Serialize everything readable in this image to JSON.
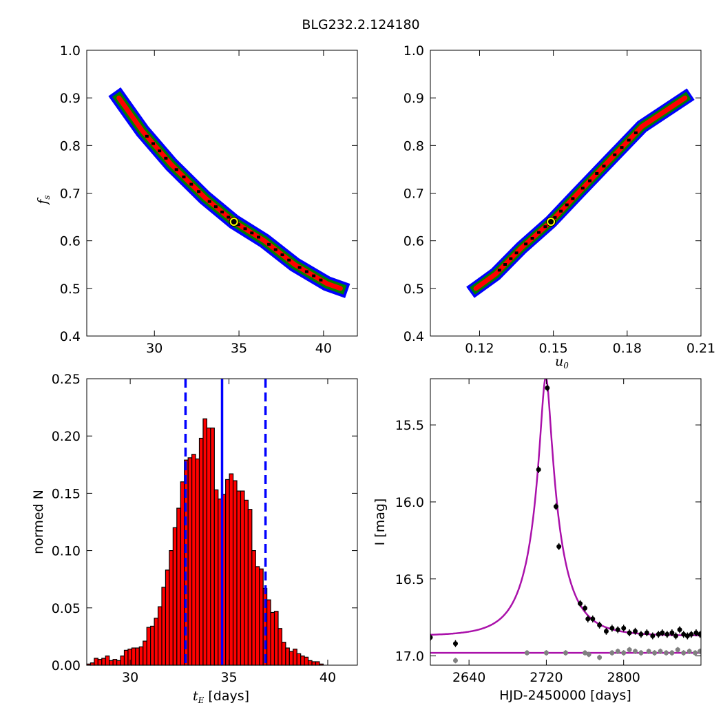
{
  "figure": {
    "suptitle": "BLG232.2.124180"
  },
  "colors": {
    "outer": "#0000ff",
    "mid": "#008000",
    "inner": "#ff0000",
    "core": "#000000",
    "marker_fill": "#ffff00",
    "bar": "#ff0000",
    "vline": "#0000ff",
    "model": "#aa11aa",
    "data_primary": "#000000",
    "data_secondary": "#808080"
  },
  "chart_data": [
    {
      "id": "fs_vs_tE",
      "type": "heatmap",
      "xlim": [
        26,
        42
      ],
      "ylim": [
        0.4,
        1.0
      ],
      "xticks": [
        30,
        35,
        40
      ],
      "yticks": [
        0.4,
        0.5,
        0.6,
        0.7,
        0.8,
        0.9,
        1.0
      ],
      "ytick_labels": [
        "0.4",
        "0.5",
        "0.6",
        "0.7",
        "0.8",
        "0.9",
        "1.0"
      ],
      "xlabel": "",
      "ylabel": "f_s",
      "band_centerline": [
        [
          27.9,
          0.9
        ],
        [
          29.3,
          0.83
        ],
        [
          31.0,
          0.76
        ],
        [
          33.0,
          0.69
        ],
        [
          34.7,
          0.64
        ],
        [
          36.5,
          0.6
        ],
        [
          38.3,
          0.55
        ],
        [
          40.2,
          0.51
        ],
        [
          41.0,
          0.5
        ]
      ],
      "best_fit": {
        "x": 34.7,
        "y": 0.64
      }
    },
    {
      "id": "fs_vs_u0",
      "type": "heatmap",
      "xlim": [
        0.1,
        0.21
      ],
      "ylim": [
        0.4,
        1.0
      ],
      "xticks": [
        0.12,
        0.15,
        0.18,
        0.21
      ],
      "xtick_labels": [
        "0.12",
        "0.15",
        "0.18",
        "0.21"
      ],
      "yticks": [
        0.4,
        0.5,
        0.6,
        0.7,
        0.8,
        0.9,
        1.0
      ],
      "ytick_labels": [
        "0.4",
        "0.5",
        "0.6",
        "0.7",
        "0.8",
        "0.9",
        "1.0"
      ],
      "xlabel": "u_0",
      "ylabel": "",
      "band_centerline": [
        [
          0.1185,
          0.5
        ],
        [
          0.1265,
          0.53
        ],
        [
          0.137,
          0.585
        ],
        [
          0.149,
          0.64
        ],
        [
          0.16,
          0.7
        ],
        [
          0.173,
          0.77
        ],
        [
          0.186,
          0.84
        ],
        [
          0.2035,
          0.9
        ]
      ],
      "best_fit": {
        "x": 0.149,
        "y": 0.64
      }
    },
    {
      "id": "tE_histogram",
      "type": "bar",
      "xlim": [
        27.8,
        41.5
      ],
      "ylim": [
        0.0,
        0.25
      ],
      "xticks": [
        30,
        35,
        40
      ],
      "yticks": [
        0.0,
        0.05,
        0.1,
        0.15,
        0.2,
        0.25
      ],
      "ytick_labels": [
        "0.00",
        "0.05",
        "0.10",
        "0.15",
        "0.20",
        "0.25"
      ],
      "xlabel": "t_E [days]",
      "ylabel": "normed N",
      "bin_start": 27.8,
      "bin_width": 0.19,
      "values": [
        0.001,
        0.002,
        0.006,
        0.005,
        0.006,
        0.008,
        0.004,
        0.005,
        0.004,
        0.008,
        0.013,
        0.014,
        0.015,
        0.015,
        0.016,
        0.021,
        0.033,
        0.034,
        0.041,
        0.051,
        0.068,
        0.083,
        0.1,
        0.12,
        0.137,
        0.16,
        0.179,
        0.181,
        0.184,
        0.18,
        0.198,
        0.215,
        0.207,
        0.207,
        0.153,
        0.145,
        0.149,
        0.162,
        0.167,
        0.161,
        0.152,
        0.152,
        0.144,
        0.136,
        0.1,
        0.086,
        0.084,
        0.067,
        0.057,
        0.046,
        0.047,
        0.032,
        0.02,
        0.015,
        0.012,
        0.014,
        0.01,
        0.008,
        0.007,
        0.004,
        0.003,
        0.003,
        0.001
      ],
      "vlines": [
        {
          "x": 32.8,
          "style": "dashed"
        },
        {
          "x": 34.65,
          "style": "solid"
        },
        {
          "x": 36.85,
          "style": "dashed"
        }
      ]
    },
    {
      "id": "light_curve",
      "type": "scatter",
      "xlim": [
        2600,
        2880
      ],
      "ylim": [
        17.06,
        15.2
      ],
      "y_inverted": true,
      "xticks": [
        2640,
        2720,
        2800
      ],
      "yticks": [
        15.5,
        16.0,
        16.5,
        17.0
      ],
      "ytick_labels": [
        "15.5",
        "16.0",
        "16.5",
        "17.0"
      ],
      "xlabel": "HJD-2450000 [days]",
      "ylabel": "I [mag]",
      "series": [
        {
          "role": "model",
          "t0": 2719.5,
          "tE": 34.7,
          "u0": 0.149,
          "fs": 0.64,
          "I_base": 16.87
        },
        {
          "role": "baseline",
          "level": 16.98
        },
        {
          "role": "primary_points",
          "points": [
            [
              2600,
              16.88
            ],
            [
              2626,
              16.92
            ],
            [
              2712,
              15.79
            ],
            [
              2721,
              15.26
            ],
            [
              2730,
              16.03
            ],
            [
              2733,
              16.29
            ],
            [
              2755,
              16.66
            ],
            [
              2760,
              16.69
            ],
            [
              2763,
              16.76
            ],
            [
              2768,
              16.76
            ],
            [
              2775,
              16.8
            ],
            [
              2782,
              16.84
            ],
            [
              2788,
              16.82
            ],
            [
              2794,
              16.83
            ],
            [
              2800,
              16.82
            ],
            [
              2806,
              16.85
            ],
            [
              2812,
              16.84
            ],
            [
              2818,
              16.86
            ],
            [
              2824,
              16.85
            ],
            [
              2830,
              16.87
            ],
            [
              2836,
              16.86
            ],
            [
              2840,
              16.85
            ],
            [
              2845,
              16.86
            ],
            [
              2850,
              16.85
            ],
            [
              2854,
              16.87
            ],
            [
              2858,
              16.83
            ],
            [
              2862,
              16.86
            ],
            [
              2866,
              16.87
            ],
            [
              2870,
              16.86
            ],
            [
              2875,
              16.85
            ],
            [
              2879,
              16.86
            ]
          ]
        },
        {
          "role": "secondary_points",
          "points": [
            [
              2626,
              17.03
            ],
            [
              2700,
              16.98
            ],
            [
              2720,
              16.98
            ],
            [
              2740,
              16.98
            ],
            [
              2760,
              16.98
            ],
            [
              2764,
              16.99
            ],
            [
              2775,
              17.01
            ],
            [
              2788,
              16.98
            ],
            [
              2794,
              16.97
            ],
            [
              2800,
              16.98
            ],
            [
              2806,
              16.96
            ],
            [
              2812,
              16.97
            ],
            [
              2818,
              16.98
            ],
            [
              2826,
              16.97
            ],
            [
              2832,
              16.98
            ],
            [
              2838,
              16.97
            ],
            [
              2844,
              16.98
            ],
            [
              2850,
              16.98
            ],
            [
              2856,
              16.96
            ],
            [
              2862,
              16.98
            ],
            [
              2868,
              16.97
            ],
            [
              2874,
              16.98
            ],
            [
              2879,
              16.97
            ]
          ]
        }
      ]
    }
  ]
}
